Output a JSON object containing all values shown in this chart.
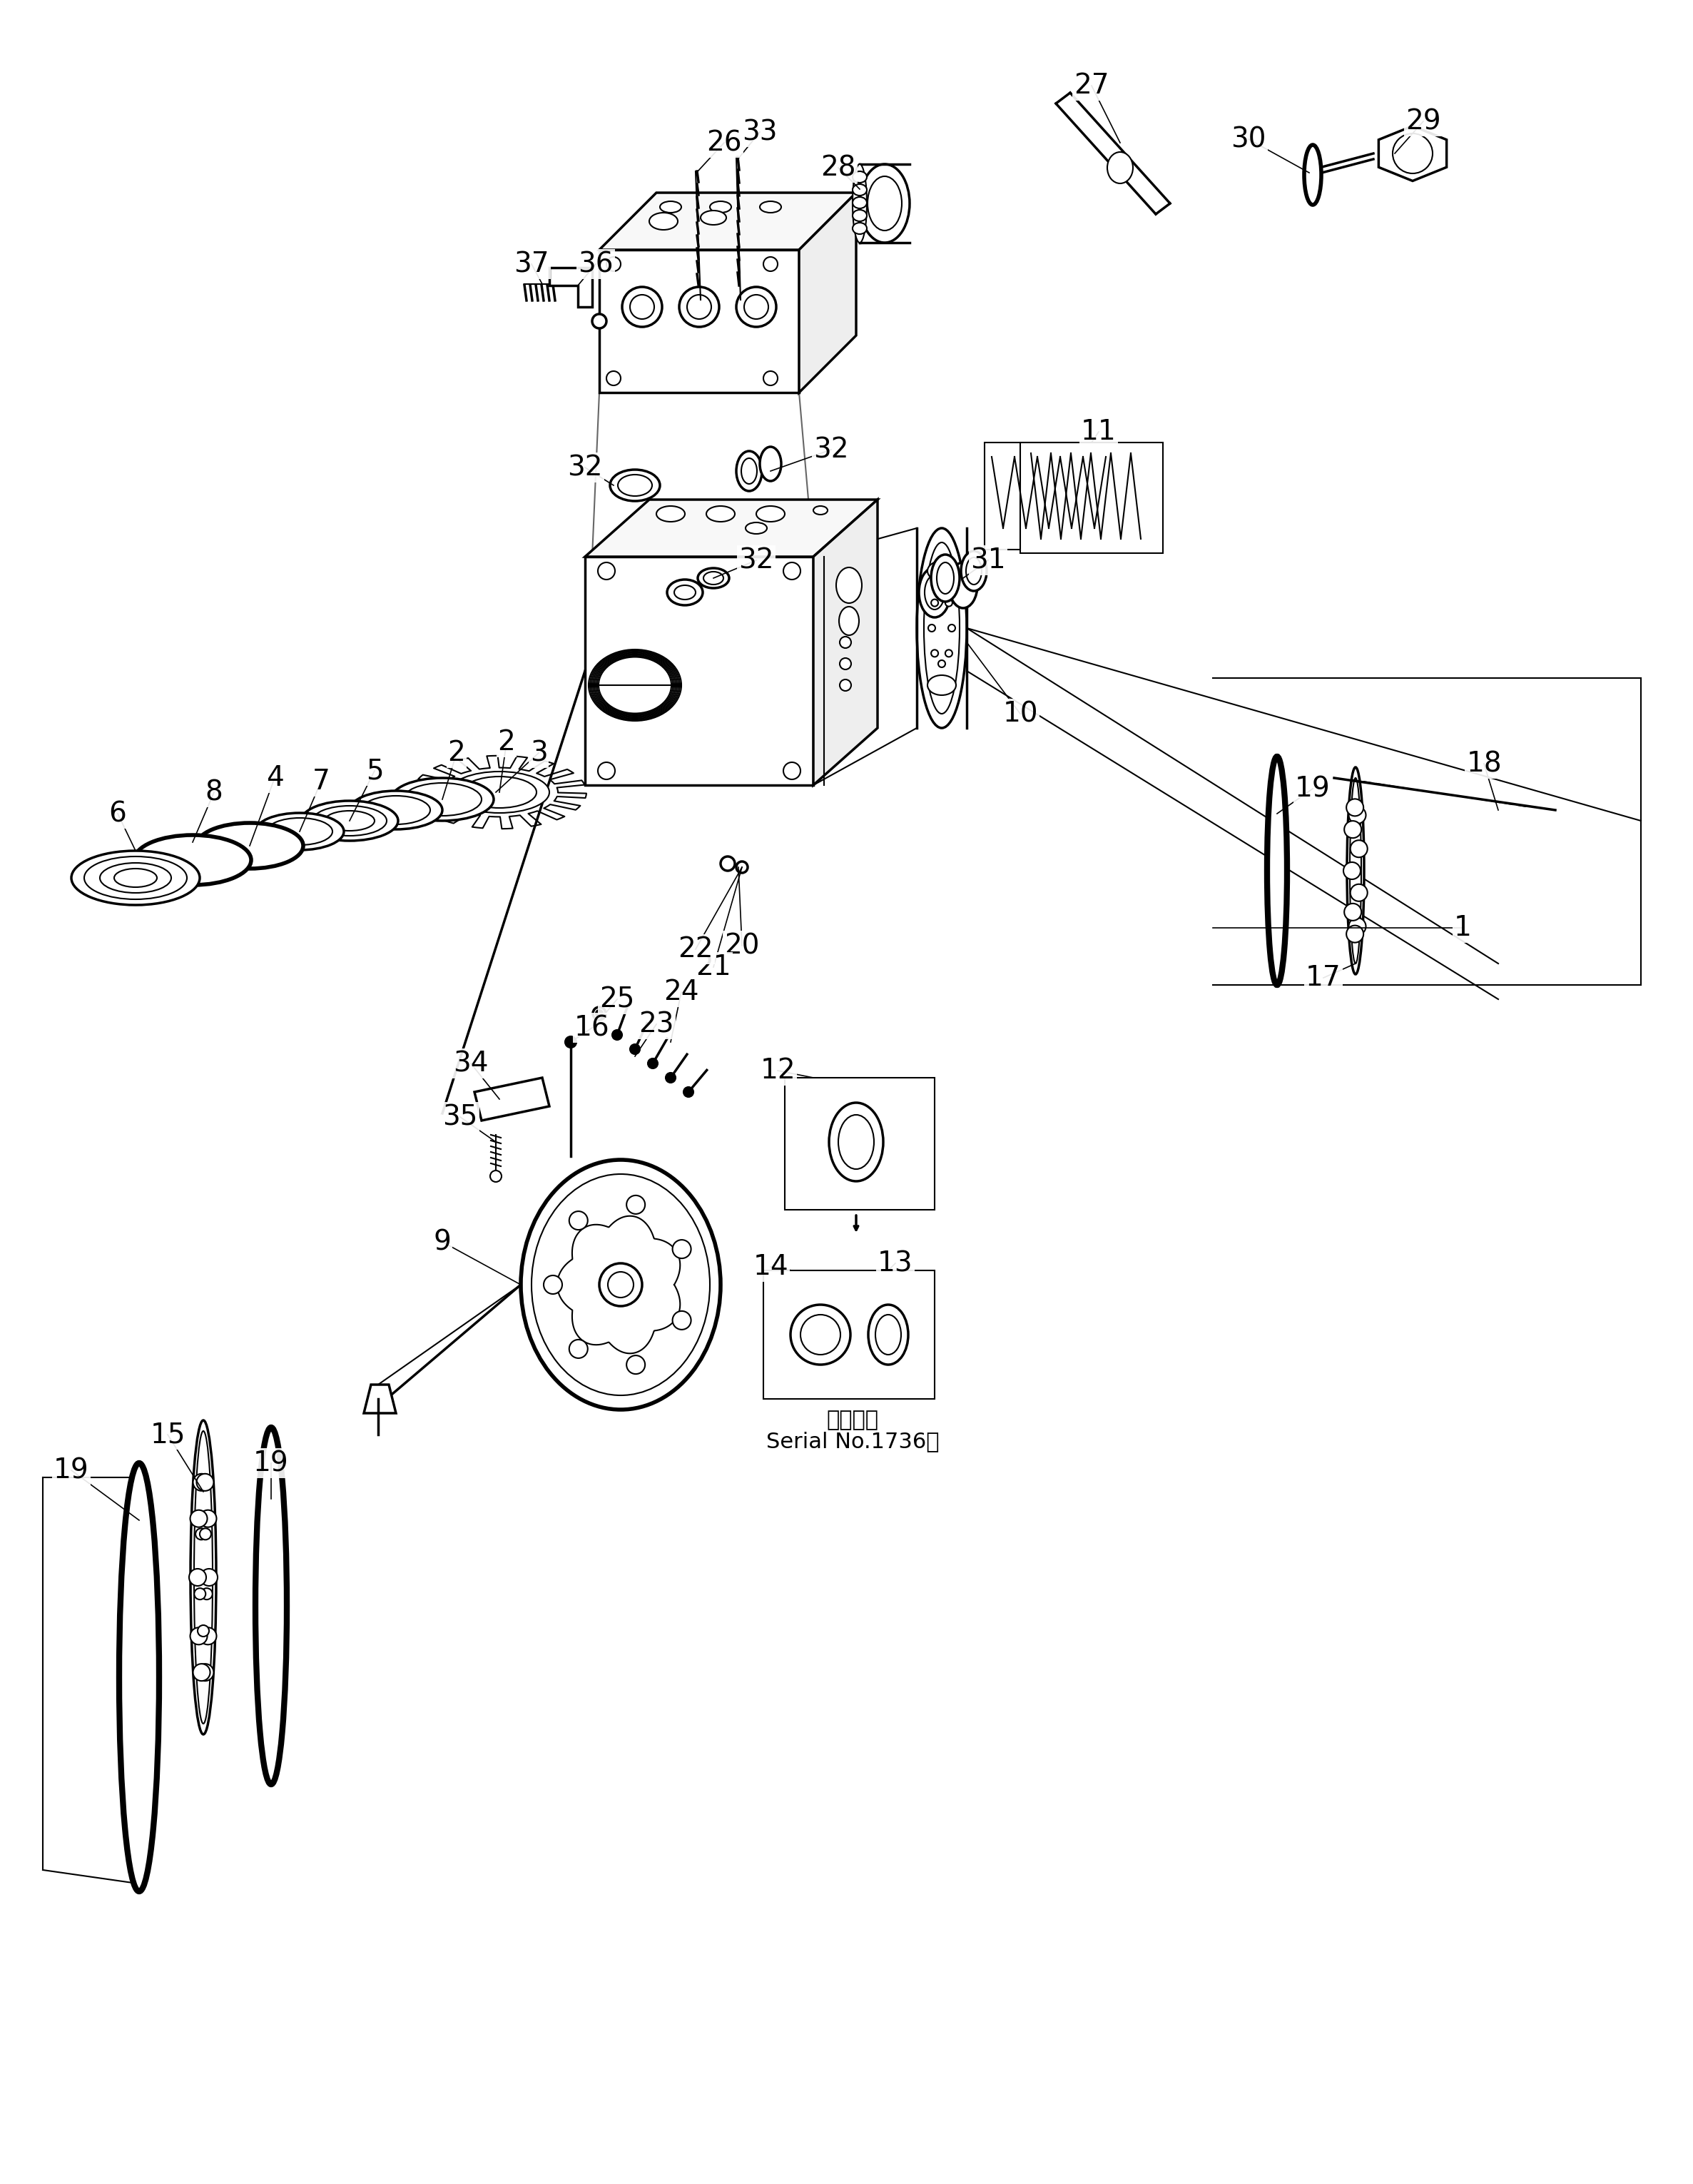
{
  "bg_color": "#ffffff",
  "line_color": "#000000",
  "fig_width": 23.73,
  "fig_height": 30.6,
  "serial_text": "Serial No.1736～",
  "applicable_text": "適用号機"
}
